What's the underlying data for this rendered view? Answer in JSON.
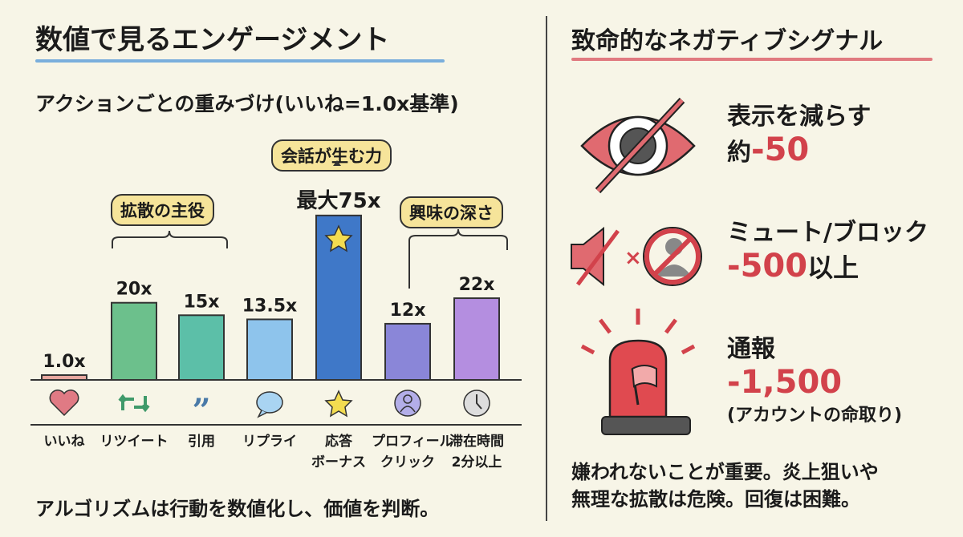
{
  "left": {
    "title": "数値で見るエンゲージメント",
    "subtitle": "アクションごとの重みづけ(いいね=1.0x基準)",
    "bubbles": {
      "spread": "拡散の主役",
      "conversation": "会話が生む力",
      "interest": "興味の深さ"
    },
    "footer": "アルゴリズムは行動を数値化し、価値を判断。",
    "accent": "#6fa3d8"
  },
  "chart_data": {
    "type": "bar",
    "categories": [
      "いいね",
      "リツイート",
      "引用",
      "リプライ",
      "応答ボーナス",
      "プロフィールクリック",
      "滞在時間2分以上"
    ],
    "category_lines": [
      [
        "いいね"
      ],
      [
        "リツイート"
      ],
      [
        "引用"
      ],
      [
        "リプライ"
      ],
      [
        "応答",
        "ボーナス"
      ],
      [
        "プロフィール",
        "クリック"
      ],
      [
        "滞在時間",
        "2分以上"
      ]
    ],
    "values": [
      1.0,
      20,
      15,
      13.5,
      75,
      12,
      22
    ],
    "data_labels": [
      "1.0x",
      "20x",
      "15x",
      "13.5x",
      "最大75x",
      "12x",
      "22x"
    ],
    "icons": [
      "heart-icon",
      "retweet-icon",
      "quote-icon",
      "reply-bubble-icon",
      "star-icon",
      "profile-icon",
      "clock-icon"
    ],
    "colors": [
      "#e8a8a0",
      "#6cc08c",
      "#5cbfa8",
      "#8ec4ec",
      "#3f78c8",
      "#8a86d8",
      "#b48ee0"
    ],
    "grid": false
  },
  "right": {
    "title": "致命的なネガティブシグナル",
    "accent": "#d2424b",
    "items": [
      {
        "label": "表示を減らす",
        "prefix": "約",
        "value": "-50",
        "suffix": "",
        "icon": "hidden-eye-icon"
      },
      {
        "label": "ミュート/ブロック",
        "prefix": "",
        "value": "-500",
        "suffix": "以上",
        "icon": "mute-block-icon"
      },
      {
        "label": "通報",
        "prefix": "",
        "value": "-1,500",
        "suffix": "",
        "note": "(アカウントの命取り)",
        "icon": "report-siren-icon"
      }
    ],
    "footer_lines": [
      "嫌われないことが重要。炎上狙いや",
      "無理な拡散は危険。回復は困難。"
    ]
  }
}
